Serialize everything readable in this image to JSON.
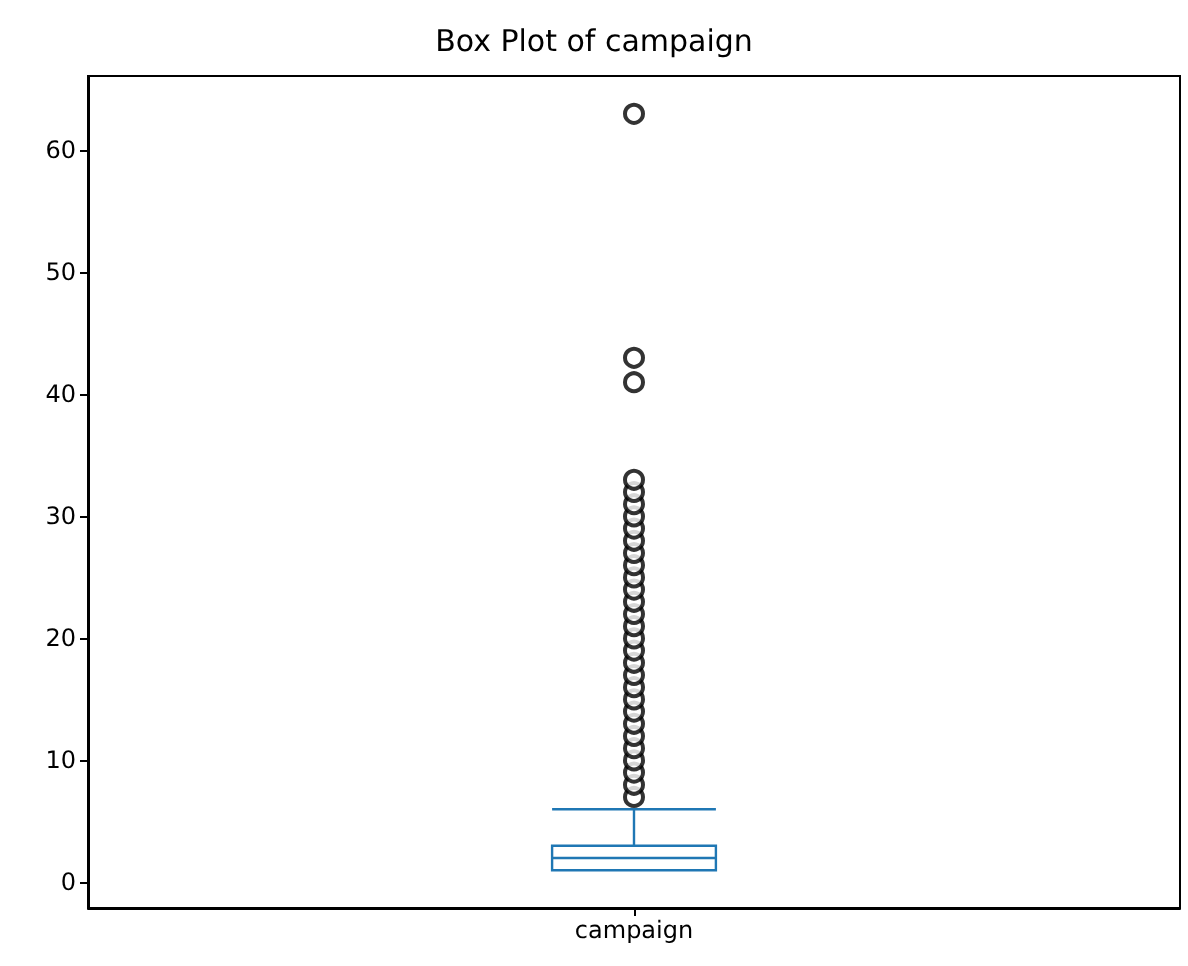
{
  "chart_data": {
    "type": "box",
    "title": "Box Plot of campaign",
    "categories": [
      "campaign"
    ],
    "series": [
      {
        "color": "#1f77b4",
        "boxes": [
          {
            "low": 1,
            "q1": 1,
            "median": 2,
            "q3": 3,
            "high": 6,
            "outliers": [
              7,
              8,
              9,
              10,
              11,
              12,
              13,
              14,
              15,
              16,
              17,
              18,
              19,
              20,
              21,
              22,
              23,
              24,
              25,
              26,
              27,
              28,
              29,
              30,
              31,
              32,
              33,
              41,
              43,
              63
            ]
          }
        ]
      }
    ],
    "ylim": [
      -2.1,
      66.1
    ],
    "yticks": [
      0,
      10,
      20,
      30,
      40,
      50,
      60
    ],
    "grid": false,
    "marker": "circle"
  }
}
